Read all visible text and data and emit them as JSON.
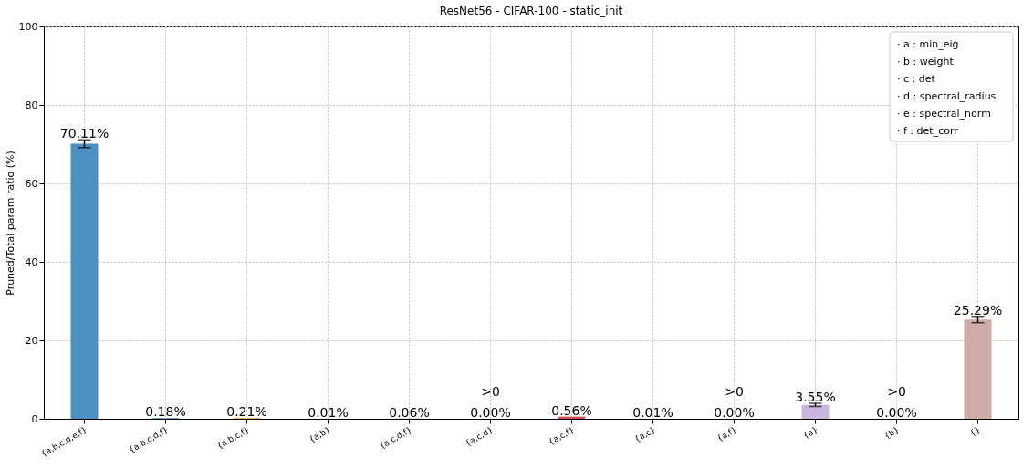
{
  "chart_data": {
    "type": "bar",
    "title": "ResNet56 - CIFAR-100 - static_init",
    "ylabel": "Pruned/Total param ratio (%)",
    "categories": [
      "{a,b,c,d,e,f}",
      "{a,b,c,d,f}",
      "{a,b,c,f}",
      "{a,b}",
      "{a,c,d,f}",
      "{a,c,d}",
      "{a,c,f}",
      "{a,c}",
      "{a,f}",
      "{a}",
      "{b}",
      "{}"
    ],
    "values": [
      70.11,
      0.18,
      0.21,
      0.01,
      0.06,
      0.0,
      0.56,
      0.01,
      0.0,
      3.55,
      0.0,
      25.29
    ],
    "colors": [
      "#4b8fc3",
      "#4b8fc3",
      "#f0a05a",
      "#f0a05a",
      "#5fb35f",
      "#5fb35f",
      "#d6504f",
      "#d6504f",
      "#b39ad3",
      "#c9b6dc",
      "#cca8a2",
      "#cfaca6"
    ],
    "errors": [
      1.0,
      null,
      null,
      null,
      null,
      null,
      null,
      null,
      null,
      0.4,
      null,
      0.8
    ],
    "value_labels": [
      "70.11%",
      "0.18%",
      "0.21%",
      "0.01%",
      "0.06%",
      "0.00%",
      "0.56%",
      "0.01%",
      "0.00%",
      "3.55%",
      "0.00%",
      "25.29%"
    ],
    "ylim": [
      0,
      100
    ],
    "yticks": [
      0,
      20,
      40,
      60,
      80,
      100
    ],
    "grid": true,
    "annotations": [
      {
        "text": ">0",
        "x": "{a,c,d}",
        "y": 0.0
      },
      {
        "text": ">0",
        "x": "{a,f}",
        "y": 0.0
      },
      {
        "text": ">0",
        "x": "{b}",
        "y": 0.0
      },
      "· a : min_eig",
      "· b : weight",
      "· c : det",
      "· d : spectral_radius",
      "· e : spectral_norm",
      "· f : det_corr"
    ]
  }
}
